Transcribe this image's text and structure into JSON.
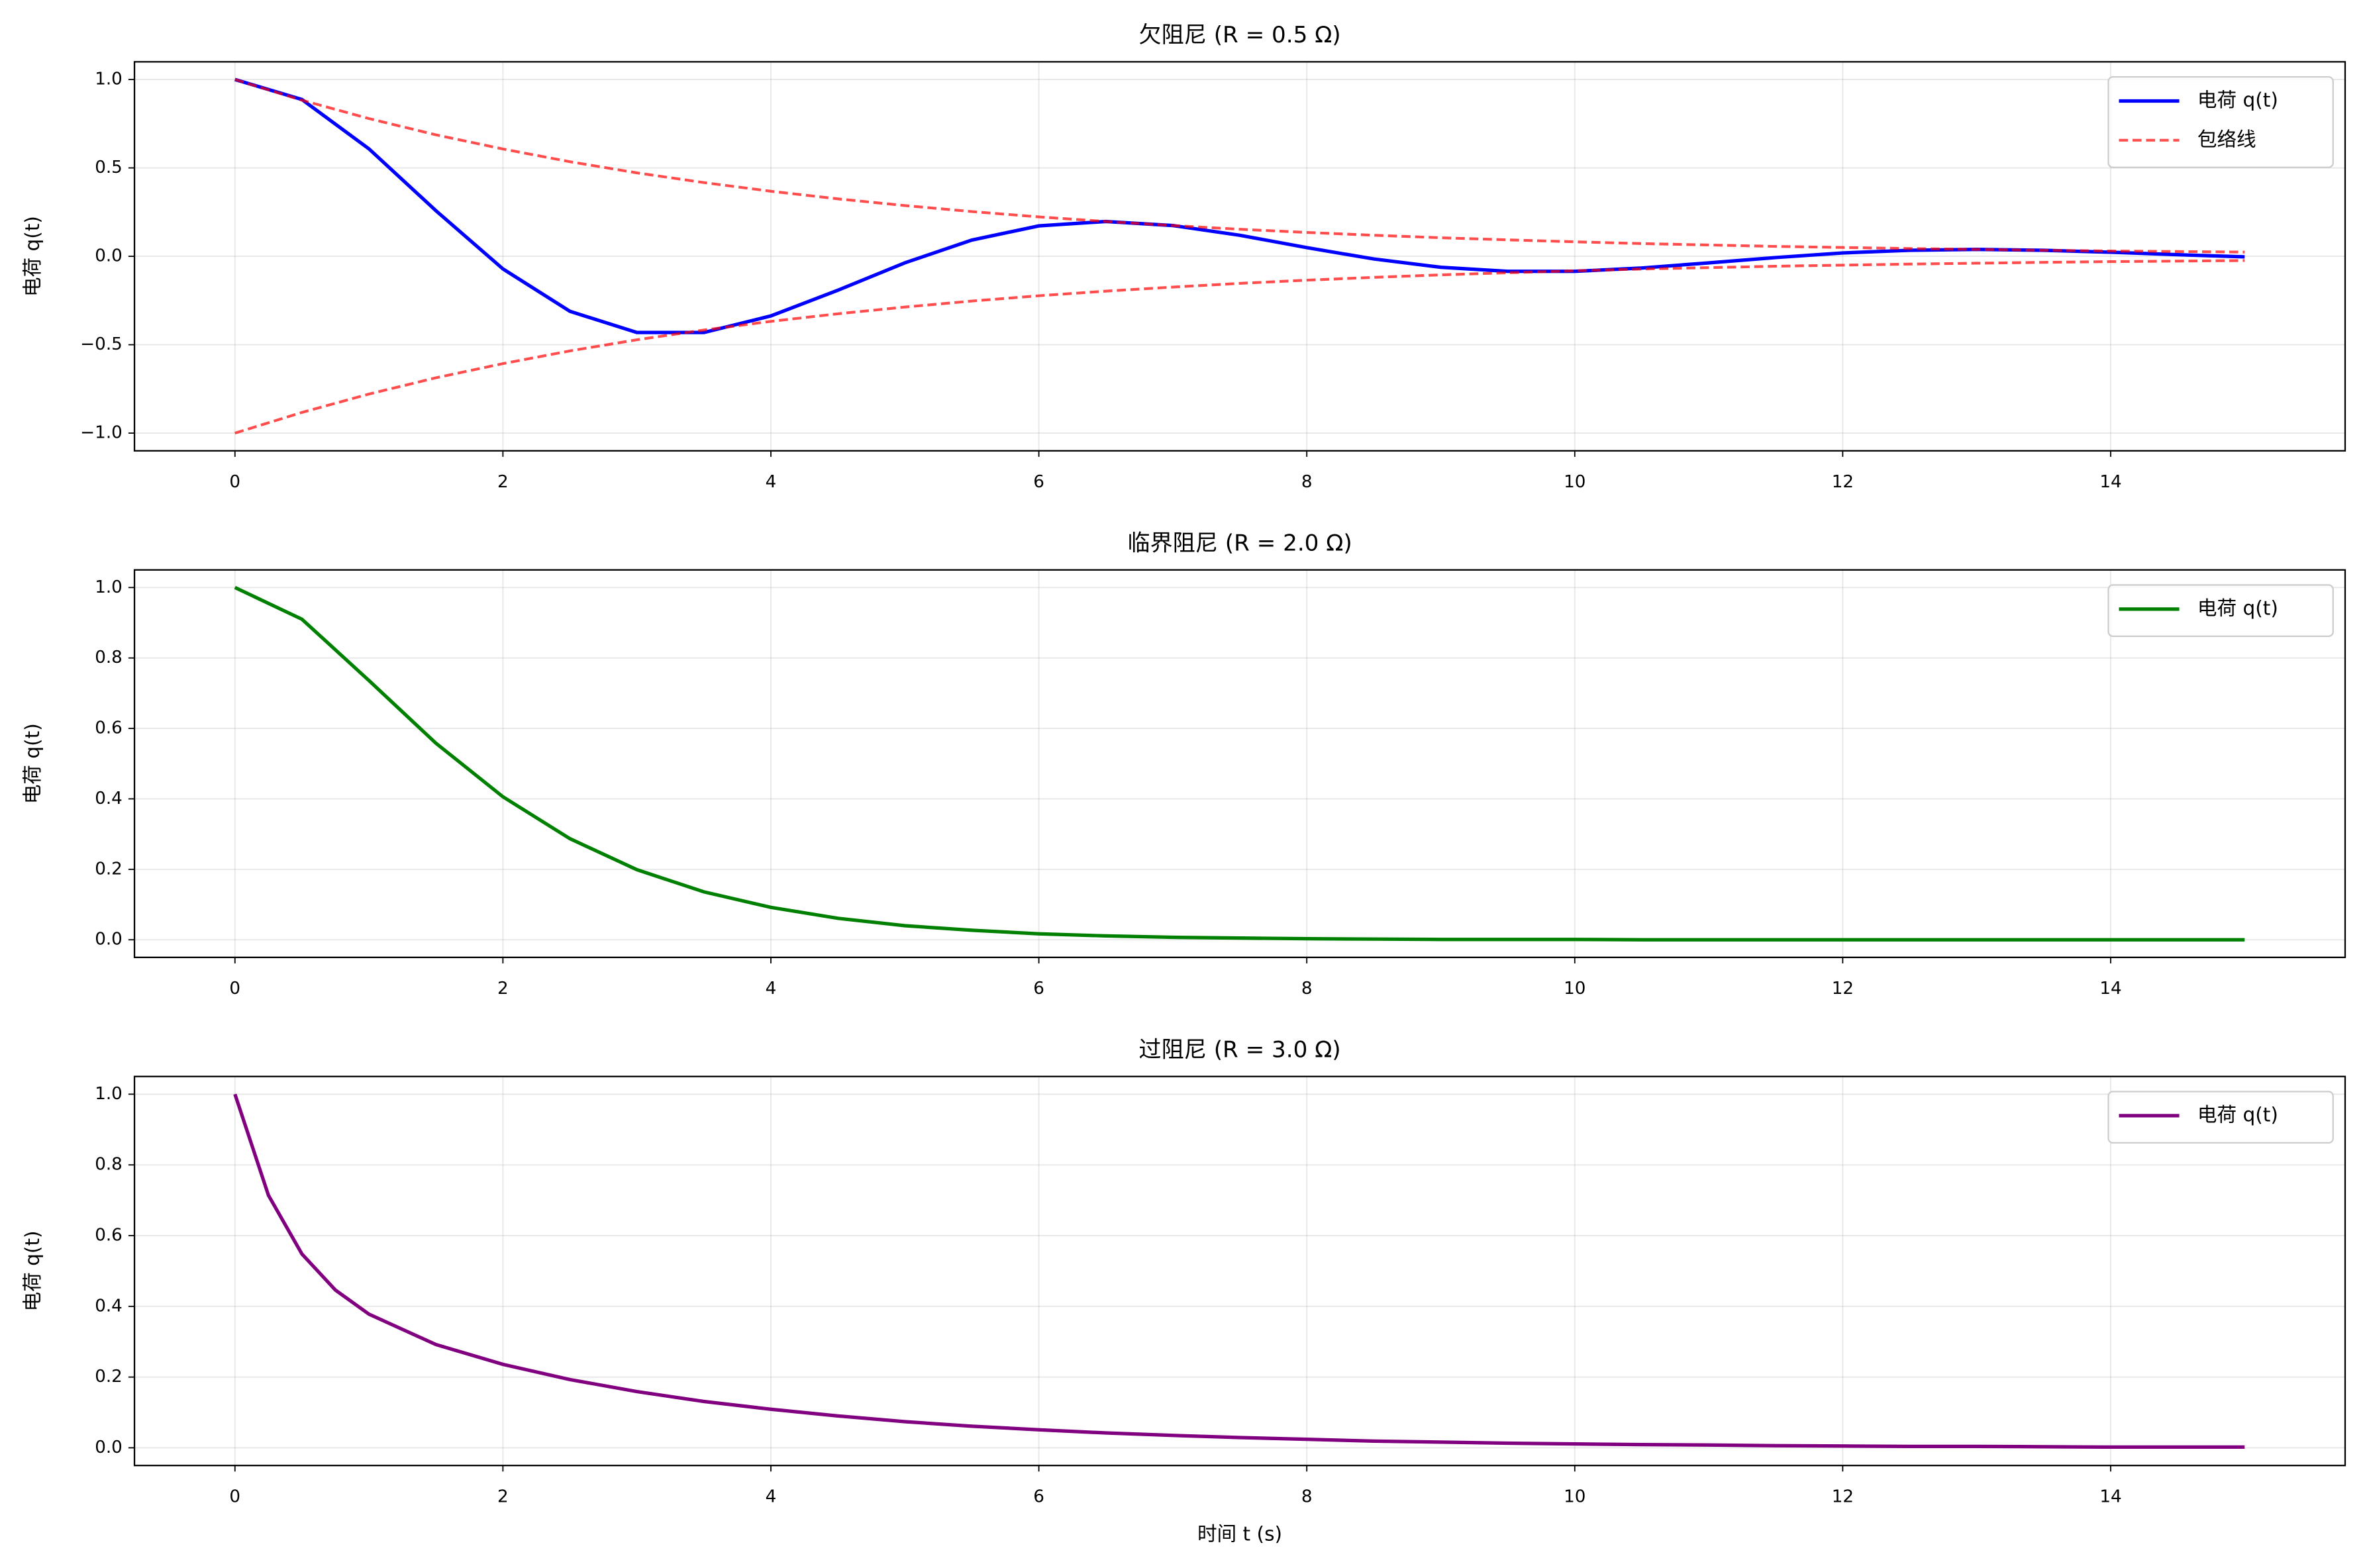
{
  "chart_data": [
    {
      "type": "line",
      "title": "欠阻尼 (R = 0.5 Ω)",
      "ylabel": "电荷 q(t)",
      "x": [
        0,
        0.5,
        1,
        1.5,
        2,
        2.5,
        3,
        3.5,
        4,
        4.5,
        5,
        5.5,
        6,
        6.5,
        7,
        7.5,
        8,
        8.5,
        9,
        9.5,
        10,
        10.5,
        11,
        11.5,
        12,
        12.5,
        13,
        13.5,
        14,
        14.5,
        15
      ],
      "series": [
        {
          "name": "电荷 q(t)",
          "color": "#0000ff",
          "linestyle": "solid",
          "values": [
            1,
            0.887,
            0.608,
            0.258,
            -0.071,
            -0.311,
            -0.431,
            -0.431,
            -0.337,
            -0.192,
            -0.037,
            0.092,
            0.172,
            0.197,
            0.174,
            0.119,
            0.049,
            -0.015,
            -0.062,
            -0.085,
            -0.085,
            -0.066,
            -0.037,
            -0.007,
            0.019,
            0.034,
            0.039,
            0.034,
            0.023,
            0.009,
            -0.003
          ]
        },
        {
          "name": "包络线",
          "color": "#ff0000",
          "linestyle": "dashed",
          "values": [
            1,
            0.883,
            0.779,
            0.687,
            0.607,
            0.535,
            0.472,
            0.417,
            0.368,
            0.325,
            0.287,
            0.253,
            0.223,
            0.197,
            0.174,
            0.153,
            0.135,
            0.119,
            0.105,
            0.093,
            0.082,
            0.072,
            0.064,
            0.056,
            0.05,
            0.044,
            0.039,
            0.034,
            0.03,
            0.027,
            0.024
          ]
        },
        {
          "color": "#ff0000",
          "linestyle": "dashed",
          "values": [
            -1,
            -0.883,
            -0.779,
            -0.687,
            -0.607,
            -0.535,
            -0.472,
            -0.417,
            -0.368,
            -0.325,
            -0.287,
            -0.253,
            -0.223,
            -0.197,
            -0.174,
            -0.153,
            -0.135,
            -0.119,
            -0.105,
            -0.093,
            -0.082,
            -0.072,
            -0.064,
            -0.056,
            -0.05,
            -0.044,
            -0.039,
            -0.034,
            -0.03,
            -0.027,
            -0.024
          ]
        }
      ],
      "xlim": [
        -0.75,
        15.75
      ],
      "xticks": [
        0,
        2,
        4,
        6,
        8,
        10,
        12,
        14
      ],
      "ylim": [
        -1.1,
        1.1
      ],
      "yticks": [
        {
          "value": -1,
          "label": "−1.0"
        },
        {
          "value": -0.5,
          "label": "−0.5"
        },
        {
          "value": 0,
          "label": "0.0"
        },
        {
          "value": 0.5,
          "label": "0.5"
        },
        {
          "value": 1,
          "label": "1.0"
        }
      ],
      "grid": true,
      "legend": "upper right"
    },
    {
      "type": "line",
      "title": "临界阻尼 (R = 2.0 Ω)",
      "ylabel": "电荷 q(t)",
      "x": [
        0,
        0.5,
        1,
        1.5,
        2,
        2.5,
        3,
        3.5,
        4,
        4.5,
        5,
        5.5,
        6,
        6.5,
        7,
        7.5,
        8,
        8.5,
        9,
        9.5,
        10,
        10.5,
        11,
        11.5,
        12,
        12.5,
        13,
        13.5,
        14,
        14.5,
        15
      ],
      "series": [
        {
          "name": "电荷 q(t)",
          "color": "#008000",
          "linestyle": "solid",
          "values": [
            1,
            0.91,
            0.736,
            0.558,
            0.406,
            0.287,
            0.199,
            0.136,
            0.092,
            0.061,
            0.04,
            0.027,
            0.017,
            0.011,
            0.007,
            0.005,
            0.003,
            0.002,
            0.001,
            0.001,
            0.001,
            0,
            0,
            0,
            0,
            0,
            0,
            0,
            0,
            0,
            0
          ]
        }
      ],
      "xlim": [
        -0.75,
        15.75
      ],
      "xticks": [
        0,
        2,
        4,
        6,
        8,
        10,
        12,
        14
      ],
      "ylim": [
        -0.05,
        1.05
      ],
      "yticks": [
        {
          "value": 0,
          "label": "0.0"
        },
        0.2,
        0.4,
        0.6,
        0.8,
        {
          "value": 1,
          "label": "1.0"
        }
      ],
      "grid": true,
      "legend": "upper right"
    },
    {
      "type": "line",
      "title": "过阻尼 (R = 3.0 Ω)",
      "ylabel": "电荷 q(t)",
      "xlabel": "时间 t (s)",
      "x": [
        0,
        0.25,
        0.5,
        0.75,
        1,
        1.5,
        2,
        2.5,
        3,
        3.5,
        4,
        4.5,
        5,
        5.5,
        6,
        6.5,
        7,
        7.5,
        8,
        8.5,
        9,
        9.5,
        10,
        10.5,
        11,
        11.5,
        12,
        12.5,
        13,
        13.5,
        14,
        14.5,
        15
      ],
      "series": [
        {
          "name": "电荷 q(t)",
          "color": "#800080",
          "linestyle": "solid",
          "values": [
            1,
            0.714,
            0.548,
            0.446,
            0.378,
            0.292,
            0.236,
            0.193,
            0.159,
            0.131,
            0.109,
            0.09,
            0.074,
            0.061,
            0.051,
            0.042,
            0.035,
            0.029,
            0.024,
            0.019,
            0.016,
            0.013,
            0.011,
            0.009,
            0.008,
            0.006,
            0.005,
            0.004,
            0.004,
            0.003,
            0.002,
            0.002,
            0.002
          ]
        }
      ],
      "xlim": [
        -0.75,
        15.75
      ],
      "xticks": [
        0,
        2,
        4,
        6,
        8,
        10,
        12,
        14
      ],
      "ylim": [
        -0.05,
        1.05
      ],
      "yticks": [
        {
          "value": 0,
          "label": "0.0"
        },
        0.2,
        0.4,
        0.6,
        0.8,
        {
          "value": 1,
          "label": "1.0"
        }
      ],
      "grid": true,
      "legend": "upper right"
    }
  ]
}
